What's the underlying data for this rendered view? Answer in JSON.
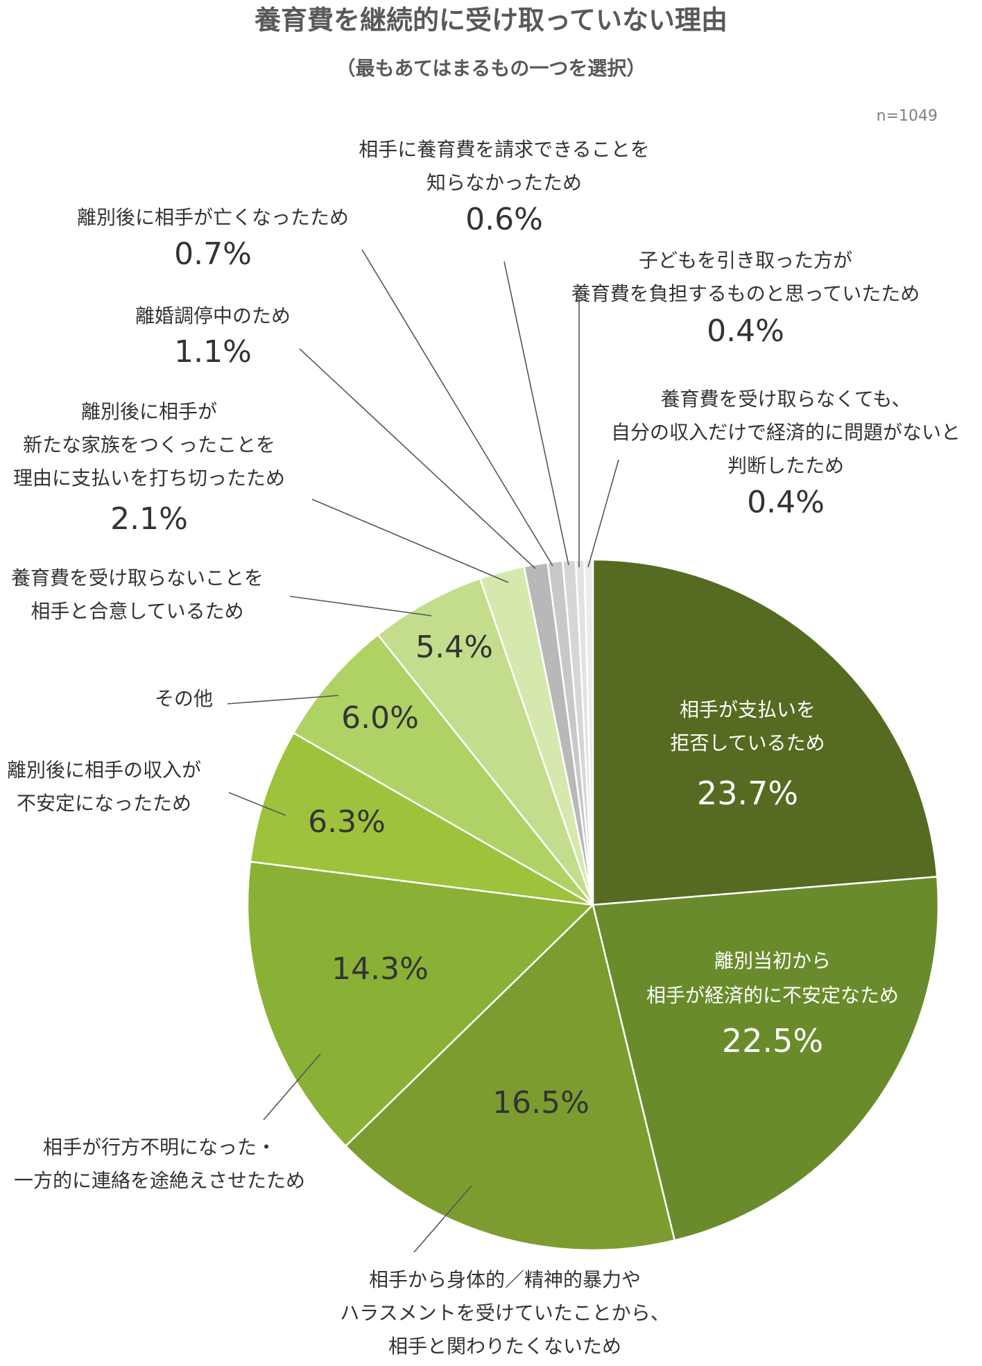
{
  "title": "養育費を継続的に受け取っていない理由",
  "subtitle": "（最もあてはまるもの一つを選択）",
  "sample_note": "n=1049",
  "chart_data": {
    "type": "pie",
    "title": "養育費を継続的に受け取っていない理由",
    "subtitle": "（最もあてはまるもの一つを選択）",
    "note": "n=1049",
    "start": "12 o'clock",
    "direction": "clockwise",
    "slices": [
      {
        "label_lines": [
          "相手が支払いを",
          "拒否しているため"
        ],
        "value": 23.7,
        "value_text": "23.7%",
        "color": "#556b21",
        "label_position": "inside"
      },
      {
        "label_lines": [
          "離別当初から",
          "相手が経済的に不安定なため"
        ],
        "value": 22.5,
        "value_text": "22.5%",
        "color": "#6a8b2b",
        "label_position": "inside"
      },
      {
        "label_lines": [
          "相手から身体的／精神的暴力や",
          "ハラスメントを受けていたことから、",
          "相手と関わりたくないため"
        ],
        "value": 16.5,
        "value_text": "16.5%",
        "color": "#7c9c2f",
        "label_position": "outside"
      },
      {
        "label_lines": [
          "相手が行方不明になった・",
          "一方的に連絡を途絶えさせたため"
        ],
        "value": 14.3,
        "value_text": "14.3%",
        "color": "#8bb036",
        "label_position": "outside"
      },
      {
        "label_lines": [
          "離別後に相手の収入が",
          "不安定になったため"
        ],
        "value": 6.3,
        "value_text": "6.3%",
        "color": "#9ec23c",
        "label_position": "outside"
      },
      {
        "label_lines": [
          "その他"
        ],
        "value": 6.0,
        "value_text": "6.0%",
        "color": "#b0d164",
        "label_position": "outside"
      },
      {
        "label_lines": [
          "養育費を受け取らないことを",
          "相手と合意しているため"
        ],
        "value": 5.4,
        "value_text": "5.4%",
        "color": "#c3dd8c",
        "label_position": "outside"
      },
      {
        "label_lines": [
          "離別後に相手が",
          "新たな家族をつくったことを",
          "理由に支払いを打ち切ったため"
        ],
        "value": 2.1,
        "value_text": "2.1%",
        "color": "#d5e8ad",
        "label_position": "outside"
      },
      {
        "label_lines": [
          "離婚調停中のため"
        ],
        "value": 1.1,
        "value_text": "1.1%",
        "color": "#b8b8b8",
        "label_position": "outside"
      },
      {
        "label_lines": [
          "離別後に相手が亡くなったため"
        ],
        "value": 0.7,
        "value_text": "0.7%",
        "color": "#c8c8c8",
        "label_position": "outside"
      },
      {
        "label_lines": [
          "相手に養育費を請求できることを",
          "知らなかったため"
        ],
        "value": 0.6,
        "value_text": "0.6%",
        "color": "#d6d6d6",
        "label_position": "outside"
      },
      {
        "label_lines": [
          "子どもを引き取った方が",
          "養育費を負担するものと思っていたため"
        ],
        "value": 0.4,
        "value_text": "0.4%",
        "color": "#e2e2e2",
        "label_position": "outside"
      },
      {
        "label_lines": [
          "養育費を受け取らなくても、",
          "自分の収入だけで経済的に問題がないと",
          "判断したため"
        ],
        "value": 0.4,
        "value_text": "0.4%",
        "color": "#ececec",
        "label_position": "outside"
      }
    ]
  }
}
